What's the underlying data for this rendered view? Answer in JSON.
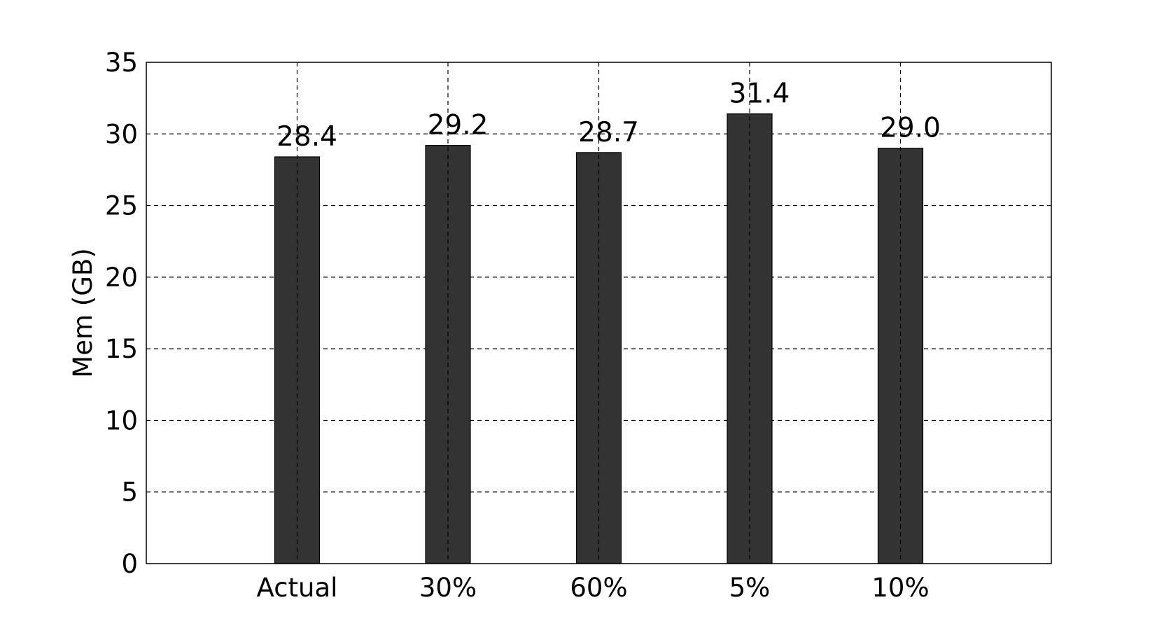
{
  "chart_data": {
    "type": "bar",
    "title": "",
    "xlabel": "",
    "ylabel": "Mem (GB)",
    "categories": [
      "Actual",
      "30%",
      "60%",
      "5%",
      "10%"
    ],
    "values": [
      28.4,
      29.2,
      28.7,
      31.4,
      29.0
    ],
    "value_labels": [
      "28.4",
      "29.2",
      "28.7",
      "31.4",
      "29.0"
    ],
    "ylim": [
      0,
      35
    ],
    "yticks": [
      0,
      5,
      10,
      15,
      20,
      25,
      30,
      35
    ],
    "ytick_labels": [
      "0",
      "5",
      "10",
      "15",
      "20",
      "25",
      "30",
      "35"
    ],
    "grid": true,
    "grid_style": "dashed",
    "legend": "none",
    "colors": {
      "bar_fill": "#333333",
      "bar_edge": "#000000",
      "grid": "#000000",
      "axis": "#000000",
      "text": "#000000"
    }
  }
}
